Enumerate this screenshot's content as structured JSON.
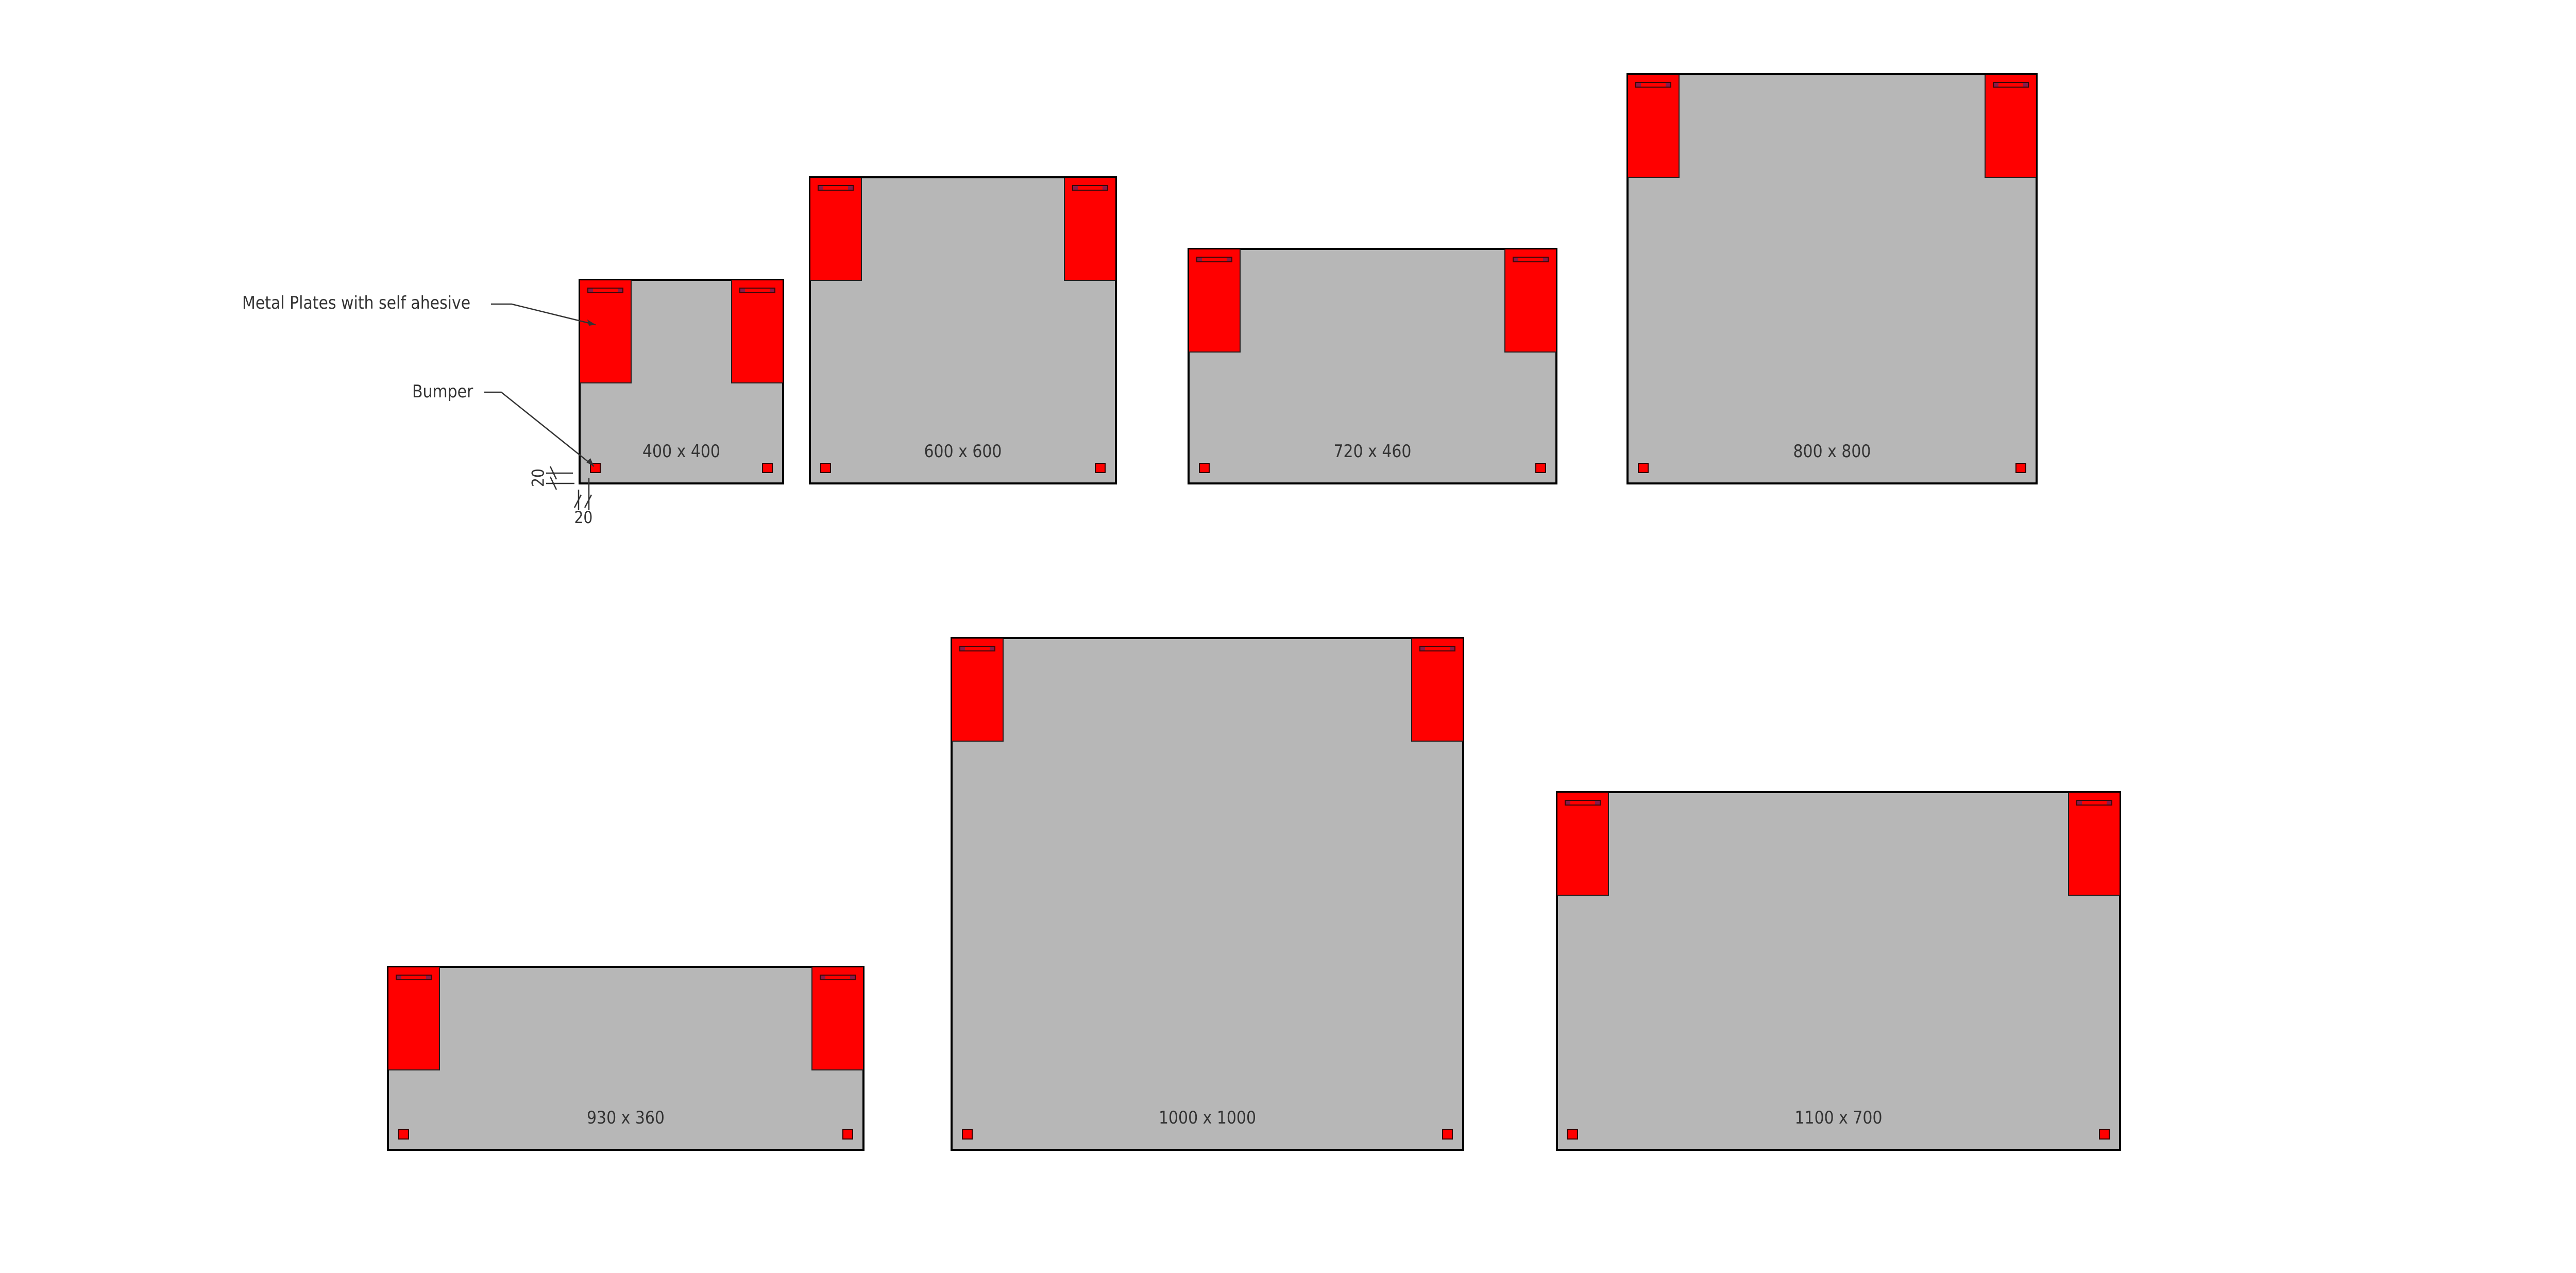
{
  "annotations": {
    "plates_label": "Metal Plates with self ahesive",
    "bumper_label": "Bumper",
    "bumper_offset_vertical": "20",
    "bumper_offset_horizontal": "20"
  },
  "panels": [
    {
      "label": "400 x 400",
      "width_mm": 400,
      "height_mm": 400
    },
    {
      "label": "600 x 600",
      "width_mm": 600,
      "height_mm": 600
    },
    {
      "label": "720 x 460",
      "width_mm": 720,
      "height_mm": 460
    },
    {
      "label": "800 x 800",
      "width_mm": 800,
      "height_mm": 800
    },
    {
      "label": "930 x 360",
      "width_mm": 930,
      "height_mm": 360
    },
    {
      "label": "1000 x 1000",
      "width_mm": 1000,
      "height_mm": 1000
    },
    {
      "label": "1100 x 700",
      "width_mm": 1100,
      "height_mm": 700
    }
  ],
  "colors": {
    "panel": "#b7b7b7",
    "plate": "#ff0000",
    "outline": "#000000"
  }
}
